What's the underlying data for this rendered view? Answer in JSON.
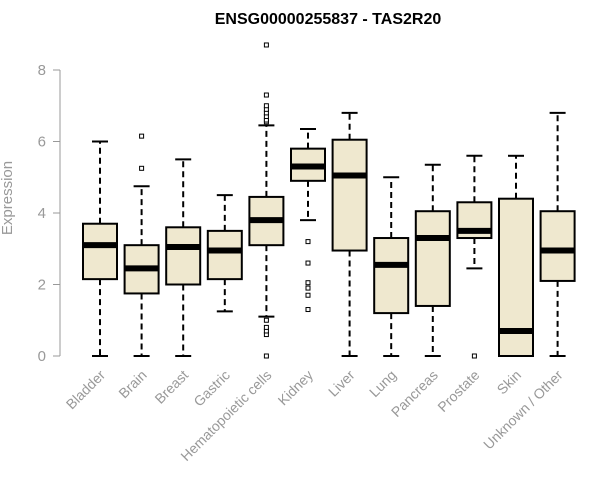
{
  "chart_data": {
    "type": "boxplot",
    "title": "ENSG00000255837 - TAS2R20",
    "xlabel": "",
    "ylabel": "Expression",
    "ylim": [
      0,
      8
    ],
    "yticks": [
      0,
      2,
      4,
      6,
      8
    ],
    "categories": [
      "Bladder",
      "Brain",
      "Breast",
      "Gastric",
      "Hematopoietic cells",
      "Kidney",
      "Liver",
      "Lung",
      "Pancreas",
      "Prostate",
      "Skin",
      "Unknown / Other"
    ],
    "boxes": [
      {
        "name": "Bladder",
        "whisker_low": 0,
        "q1": 2.15,
        "median": 3.1,
        "q3": 3.7,
        "whisker_high": 6.0,
        "outliers": []
      },
      {
        "name": "Brain",
        "whisker_low": 0,
        "q1": 1.75,
        "median": 2.45,
        "q3": 3.1,
        "whisker_high": 4.75,
        "outliers": [
          5.25,
          6.15
        ]
      },
      {
        "name": "Breast",
        "whisker_low": 0,
        "q1": 2.0,
        "median": 3.05,
        "q3": 3.6,
        "whisker_high": 5.5,
        "outliers": []
      },
      {
        "name": "Gastric",
        "whisker_low": 1.25,
        "q1": 2.15,
        "median": 2.95,
        "q3": 3.5,
        "whisker_high": 4.5,
        "outliers": []
      },
      {
        "name": "Hematopoietic cells",
        "whisker_low": 1.1,
        "q1": 3.1,
        "median": 3.8,
        "q3": 4.45,
        "whisker_high": 6.45,
        "outliers": [
          0,
          0.6,
          0.7,
          0.8,
          1.0,
          6.55,
          6.6,
          6.7,
          6.8,
          6.9,
          7.0,
          7.3,
          8.7
        ]
      },
      {
        "name": "Kidney",
        "whisker_low": 3.8,
        "q1": 4.9,
        "median": 5.3,
        "q3": 5.8,
        "whisker_high": 6.35,
        "outliers": [
          1.3,
          1.7,
          1.9,
          2.05,
          2.6,
          3.2
        ]
      },
      {
        "name": "Liver",
        "whisker_low": 0,
        "q1": 2.95,
        "median": 5.05,
        "q3": 6.05,
        "whisker_high": 6.8,
        "outliers": []
      },
      {
        "name": "Lung",
        "whisker_low": 0,
        "q1": 1.2,
        "median": 2.55,
        "q3": 3.3,
        "whisker_high": 5.0,
        "outliers": []
      },
      {
        "name": "Pancreas",
        "whisker_low": 0,
        "q1": 1.4,
        "median": 3.3,
        "q3": 4.05,
        "whisker_high": 5.35,
        "outliers": []
      },
      {
        "name": "Prostate",
        "whisker_low": 2.45,
        "q1": 3.3,
        "median": 3.5,
        "q3": 4.3,
        "whisker_high": 5.6,
        "outliers": [
          0
        ]
      },
      {
        "name": "Skin",
        "whisker_low": 0,
        "q1": 0,
        "median": 0.7,
        "q3": 4.4,
        "whisker_high": 5.6,
        "outliers": []
      },
      {
        "name": "Unknown / Other",
        "whisker_low": 0,
        "q1": 2.1,
        "median": 2.95,
        "q3": 4.05,
        "whisker_high": 6.8,
        "outliers": []
      }
    ],
    "box_fill": "#efe8cf",
    "box_stroke": "#000000",
    "axis_color": "#999999",
    "grid": false,
    "legend": "none"
  }
}
